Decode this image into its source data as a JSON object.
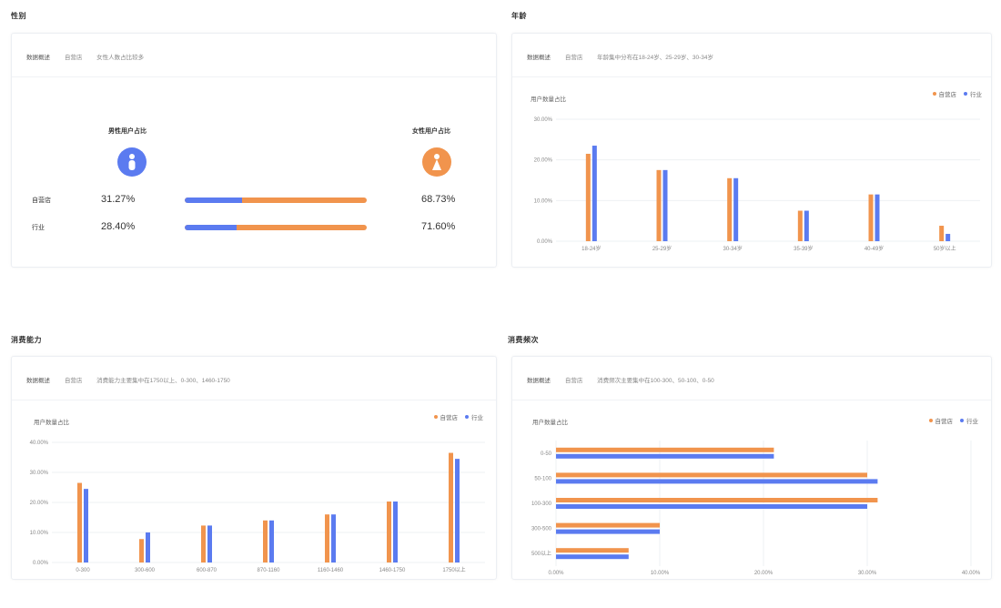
{
  "colors": {
    "self": "#f1944d",
    "industry": "#5b7bf0"
  },
  "legend": {
    "self": "自营店",
    "industry": "行业"
  },
  "gender": {
    "title": "性别",
    "head": [
      "数据概述",
      "自营店",
      "女性人数占比较多"
    ],
    "male_label": "男性用户占比",
    "female_label": "女性用户占比",
    "male_icon": "male-person-icon",
    "female_icon": "female-person-icon",
    "rows": [
      {
        "name": "自营店",
        "male_text": "31.27%",
        "female_text": "68.73%",
        "male": 31.27
      },
      {
        "name": "行业",
        "male_text": "28.40%",
        "female_text": "71.60%",
        "male": 28.4
      }
    ]
  },
  "chart_data": [
    {
      "type": "bar",
      "title": "年龄",
      "head": [
        "数据概述",
        "自营店",
        "年龄集中分布在18-24岁、25-29岁、30-34岁"
      ],
      "ylabel": "用户数量占比",
      "categories": [
        "18-24岁",
        "25-29岁",
        "30-34岁",
        "35-39岁",
        "40-49岁",
        "50岁以上"
      ],
      "yticks": [
        "0.00%",
        "10.00%",
        "20.00%",
        "30.00%"
      ],
      "ylim": [
        0,
        30
      ],
      "series": [
        {
          "name": "自营店",
          "values": [
            21.5,
            17.5,
            15.5,
            7.5,
            11.5,
            3.8
          ]
        },
        {
          "name": "行业",
          "values": [
            23.5,
            17.5,
            15.5,
            7.5,
            11.5,
            1.8
          ]
        }
      ]
    },
    {
      "type": "bar",
      "title": "消费能力",
      "head": [
        "数据概述",
        "自营店",
        "消费能力主要集中在1750以上、0-300、1460-1750"
      ],
      "ylabel": "用户数量占比",
      "categories": [
        "0-300",
        "300-600",
        "600-870",
        "870-1160",
        "1160-1460",
        "1460-1750",
        "1750以上"
      ],
      "yticks": [
        "0.00%",
        "10.00%",
        "20.00%",
        "30.00%",
        "40.00%"
      ],
      "ylim": [
        0,
        40
      ],
      "series": [
        {
          "name": "自营店",
          "values": [
            26.5,
            7.8,
            12.3,
            14.0,
            16.0,
            20.3,
            36.5
          ]
        },
        {
          "name": "行业",
          "values": [
            24.5,
            10.0,
            12.3,
            14.0,
            16.0,
            20.3,
            34.5
          ]
        }
      ]
    },
    {
      "type": "bar",
      "orientation": "horizontal",
      "title": "消费频次",
      "head": [
        "数据概述",
        "自营店",
        "消费频次主要集中在100-300、50-100、0-50"
      ],
      "ylabel": "用户数量占比",
      "categories": [
        "0-50",
        "50-100",
        "100-300",
        "300-500",
        "500以上"
      ],
      "xticks": [
        "0.00%",
        "10.00%",
        "20.00%",
        "30.00%",
        "40.00%"
      ],
      "xlim": [
        0,
        40
      ],
      "series": [
        {
          "name": "自营店",
          "values": [
            21.0,
            30.0,
            31.0,
            10.0,
            7.0
          ]
        },
        {
          "name": "行业",
          "values": [
            21.0,
            31.0,
            30.0,
            10.0,
            7.0
          ]
        }
      ]
    }
  ]
}
